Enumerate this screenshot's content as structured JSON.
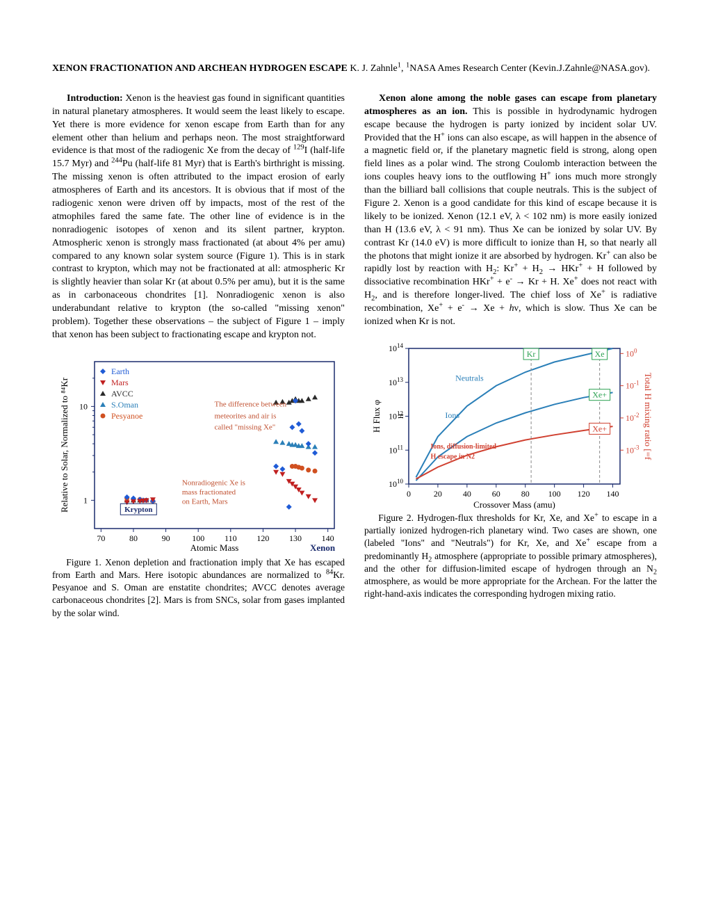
{
  "header": {
    "title_bold": "XENON FRACTIONATION AND ARCHEAN HYDROGEN ESCAPE",
    "authors": "  K. J. Zahnle",
    "affil_sup": "1",
    "affil_rest": ", ",
    "affil_sup2": "1",
    "affil_text": "NASA Ames Research Center (Kevin.J.Zahnle@NASA.gov)."
  },
  "col1": {
    "intro_head": "Introduction:",
    "intro_body": "  Xenon is the heaviest gas found in significant quantities in natural planetary atmospheres. It would seem the least likely to escape. Yet there is more evidence for xenon escape from Earth than for any element other than helium and perhaps neon. The most straightforward evidence is that most of the radiogenic Xe from the decay of ",
    "i129": "129",
    "intro_body2": "I (half-life 15.7 Myr) and ",
    "pu244": "244",
    "intro_body3": "Pu (half-life 81 Myr) that is Earth's birthright is missing. The missing xenon is often attributed to the impact erosion of early atmospheres of Earth and its ancestors. It is obvious that if most of the radiogenic xenon were driven off by impacts, most of the rest of the atmophiles fared the same fate.  The other line of evidence is in the nonradiogenic isotopes of xenon and its silent partner, krypton. Atmospheric xenon is strongly mass fractionated (at about 4% per amu) compared to any known solar system source (Figure 1). This is in stark contrast to krypton, which may not be fractionated at all: atmospheric Kr is slightly heavier than solar Kr (at about 0.5% per amu), but it is the same as in carbonaceous chondrites [1]. Nonradiogenic xenon is also underabundant relative to krypton (the so-called \"missing xenon\" problem). Together these observations – the subject of Figure 1 – imply that xenon has been subject to fractionating escape and krypton not."
  },
  "fig1": {
    "caption": "Figure 1. Xenon depletion and fractionation imply that Xe has escaped from Earth and Mars. Here isotopic abundances are normalized to ",
    "kr84": "84",
    "caption2": "Kr. Pesyanoe and S. Oman are enstatite chondrites; AVCC denotes average carbonaceous chondrites [2].  Mars is from SNCs, solar from gases implanted by the solar wind.",
    "ylabel": "Relative to Solar, Normalized to 84Kr",
    "xlabel": "Atomic Mass",
    "xenon_label": "Xenon",
    "krypton_label": "Krypton",
    "legend": {
      "earth": "Earth",
      "mars": "Mars",
      "avcc": "AVCC",
      "soman": "S.Oman",
      "pesyanoe": "Pesyanoe"
    },
    "note1": "The difference between meteorites and air is called \"missing Xe\"",
    "note2": "Nonradiogenic Xe is mass fractionated on Earth, Mars",
    "xticks": [
      70,
      80,
      90,
      100,
      110,
      120,
      130,
      140
    ],
    "yticks": [
      "1",
      "10"
    ],
    "yvals": [
      1,
      10
    ],
    "xlim": [
      68,
      142
    ],
    "ylim": [
      0.5,
      30
    ],
    "colors": {
      "frame": "#1a2b6d",
      "earth": "#1f5bd6",
      "mars": "#c02020",
      "avcc": "#2a2a2a",
      "soman": "#2a7fb8",
      "pesyanoe": "#d05020",
      "note": "#c05030"
    },
    "earth_data": [
      [
        78,
        1.08
      ],
      [
        80,
        1.05
      ],
      [
        82,
        1.02
      ],
      [
        83,
        1.0
      ],
      [
        84,
        1.0
      ],
      [
        86,
        0.98
      ],
      [
        124,
        2.3
      ],
      [
        126,
        2.15
      ],
      [
        128,
        0.85
      ],
      [
        129,
        6.0
      ],
      [
        130,
        11.5
      ],
      [
        131,
        6.5
      ],
      [
        132,
        5.5
      ],
      [
        134,
        4.0
      ],
      [
        136,
        3.2
      ]
    ],
    "mars_data": [
      [
        78,
        0.95
      ],
      [
        80,
        0.97
      ],
      [
        82,
        0.98
      ],
      [
        83,
        0.99
      ],
      [
        84,
        1.0
      ],
      [
        86,
        1.02
      ],
      [
        124,
        2.0
      ],
      [
        126,
        1.9
      ],
      [
        128,
        1.6
      ],
      [
        129,
        1.5
      ],
      [
        130,
        1.4
      ],
      [
        131,
        1.3
      ],
      [
        132,
        1.2
      ],
      [
        134,
        1.1
      ],
      [
        136,
        1.0
      ]
    ],
    "avcc_data": [
      [
        78,
        1.0
      ],
      [
        80,
        1.0
      ],
      [
        82,
        1.0
      ],
      [
        83,
        1.0
      ],
      [
        84,
        1.0
      ],
      [
        86,
        1.0
      ],
      [
        124,
        11
      ],
      [
        126,
        11.2
      ],
      [
        128,
        11
      ],
      [
        129,
        11.5
      ],
      [
        130,
        12
      ],
      [
        131,
        11.5
      ],
      [
        132,
        11.5
      ],
      [
        134,
        12
      ],
      [
        136,
        12.5
      ]
    ],
    "soman_data": [
      [
        124,
        4.2
      ],
      [
        126,
        4.1
      ],
      [
        128,
        4.0
      ],
      [
        129,
        3.9
      ],
      [
        130,
        3.9
      ],
      [
        131,
        3.8
      ],
      [
        132,
        3.8
      ],
      [
        134,
        3.7
      ],
      [
        136,
        3.7
      ]
    ],
    "pesyanoe_data": [
      [
        78,
        1.05
      ],
      [
        80,
        1.03
      ],
      [
        82,
        1.02
      ],
      [
        84,
        1.0
      ],
      [
        86,
        0.98
      ],
      [
        129,
        2.3
      ],
      [
        130,
        2.3
      ],
      [
        131,
        2.25
      ],
      [
        132,
        2.2
      ],
      [
        134,
        2.1
      ],
      [
        136,
        2.05
      ]
    ]
  },
  "col2": {
    "head": "Xenon alone among the noble gases can escape from planetary atmospheres as an ion.",
    "body": " This is possible in hydrodynamic hydrogen escape because the hydrogen is party ionized by incident solar UV. Provided that the H",
    "body2": " ions can also escape, as will happen in the absence of a magnetic field or, if the planetary magnetic field is strong, along open field lines as a polar wind. The strong Coulomb interaction between the ions couples heavy ions to the outflowing H",
    "body3": " ions much more strongly than the billiard ball collisions that couple neutrals. This is the subject of Figure 2. Xenon is a good candidate for this kind of escape because it is likely to be ionized.  Xenon (12.1 eV, λ < 102 nm) is more easily ionized than H (13.6 eV, λ < 91 nm).  Thus Xe can be ionized by solar UV.  By contrast Kr (14.0 eV) is more difficult to ionize than H, so that nearly all the photons that might ionize it are absorbed by hydrogen.  Kr",
    "body4": " can also be rapidly lost by reaction with H",
    "sub2a": "2",
    "body5": ":  Kr",
    "body6": " + H",
    "sub2b": "2",
    "body7": " → HKr",
    "body8": " + H followed by dissociative recombination HKr",
    "body9": " + e",
    "body10": "  → Kr + H.  Xe",
    "body11": " does not react with H",
    "sub2c": "2",
    "body12": ", and is therefore longer-lived. The chief loss of Xe",
    "body13": " is radiative recombination, Xe",
    "body14": " + e",
    "body15": " → Xe + ",
    "hv": "h",
    "body16": "ν, which is slow.  Thus Xe can be ionized when Kr is not."
  },
  "fig2": {
    "caption": "Figure 2. Hydrogen-flux thresholds for Kr, Xe, and Xe",
    "caption2": " to escape in a partially ionized hydrogen-rich planetary wind. Two cases are shown, one (labeled \"Ions\" and \"Neutrals\") for Kr, Xe, and Xe",
    "caption3": " escape from a predominantly H",
    "sub2": "2",
    "caption4": " atmosphere (appropriate to possible primary atmospheres), and the other for diffusion-limited escape of hydrogen through an N",
    "sub2b": "2",
    "caption5": " atmosphere, as would be more appropriate for the Archean. For the latter the right-hand-axis indicates the corresponding hydrogen mixing ratio.",
    "ylabel_left": "H Flux φH [atoms cm-2 s-1]",
    "ylabel_right": "Total H mixing ratio [=ftot]",
    "xlabel": "Crossover Mass (amu)",
    "xticks": [
      0,
      20,
      40,
      60,
      80,
      100,
      120,
      140
    ],
    "yleft_ticks": [
      "10^10",
      "10^11",
      "10^12",
      "10^13",
      "10^14"
    ],
    "yleft_vals": [
      10,
      11,
      12,
      13,
      14
    ],
    "yright_ticks": [
      "10^0",
      "10^-1",
      "10^-2",
      "10^-3"
    ],
    "yright_vals": [
      0,
      -1,
      -2,
      -3
    ],
    "xlim": [
      0,
      145
    ],
    "colors": {
      "frame": "#1a2b6d",
      "neutrals": "#2a7fb8",
      "ions": "#2a7fb8",
      "red": "#d04030",
      "label_kr": "#2aa050",
      "label_xe": "#2aa050",
      "yright": "#d04030"
    },
    "neutrals_curve": [
      [
        5,
        10.2
      ],
      [
        20,
        11.4
      ],
      [
        40,
        12.3
      ],
      [
        60,
        12.9
      ],
      [
        80,
        13.3
      ],
      [
        100,
        13.6
      ],
      [
        120,
        13.8
      ],
      [
        140,
        14.0
      ]
    ],
    "ions_curve": [
      [
        5,
        10.1
      ],
      [
        20,
        10.8
      ],
      [
        40,
        11.4
      ],
      [
        60,
        11.8
      ],
      [
        80,
        12.1
      ],
      [
        100,
        12.35
      ],
      [
        120,
        12.55
      ],
      [
        140,
        12.7
      ]
    ],
    "red_curve": [
      [
        5,
        10.15
      ],
      [
        20,
        10.5
      ],
      [
        40,
        10.85
      ],
      [
        60,
        11.1
      ],
      [
        80,
        11.3
      ],
      [
        100,
        11.45
      ],
      [
        120,
        11.58
      ],
      [
        140,
        11.7
      ]
    ],
    "labels": {
      "neutrals": "Neutrals",
      "ions": "Ions",
      "red1": "Ions, diffusion-limited",
      "red2": "H escape in N2",
      "kr": "Kr",
      "xe_top": "Xe",
      "xe_mid": "Xe+",
      "xe_bot": "Xe+"
    }
  }
}
